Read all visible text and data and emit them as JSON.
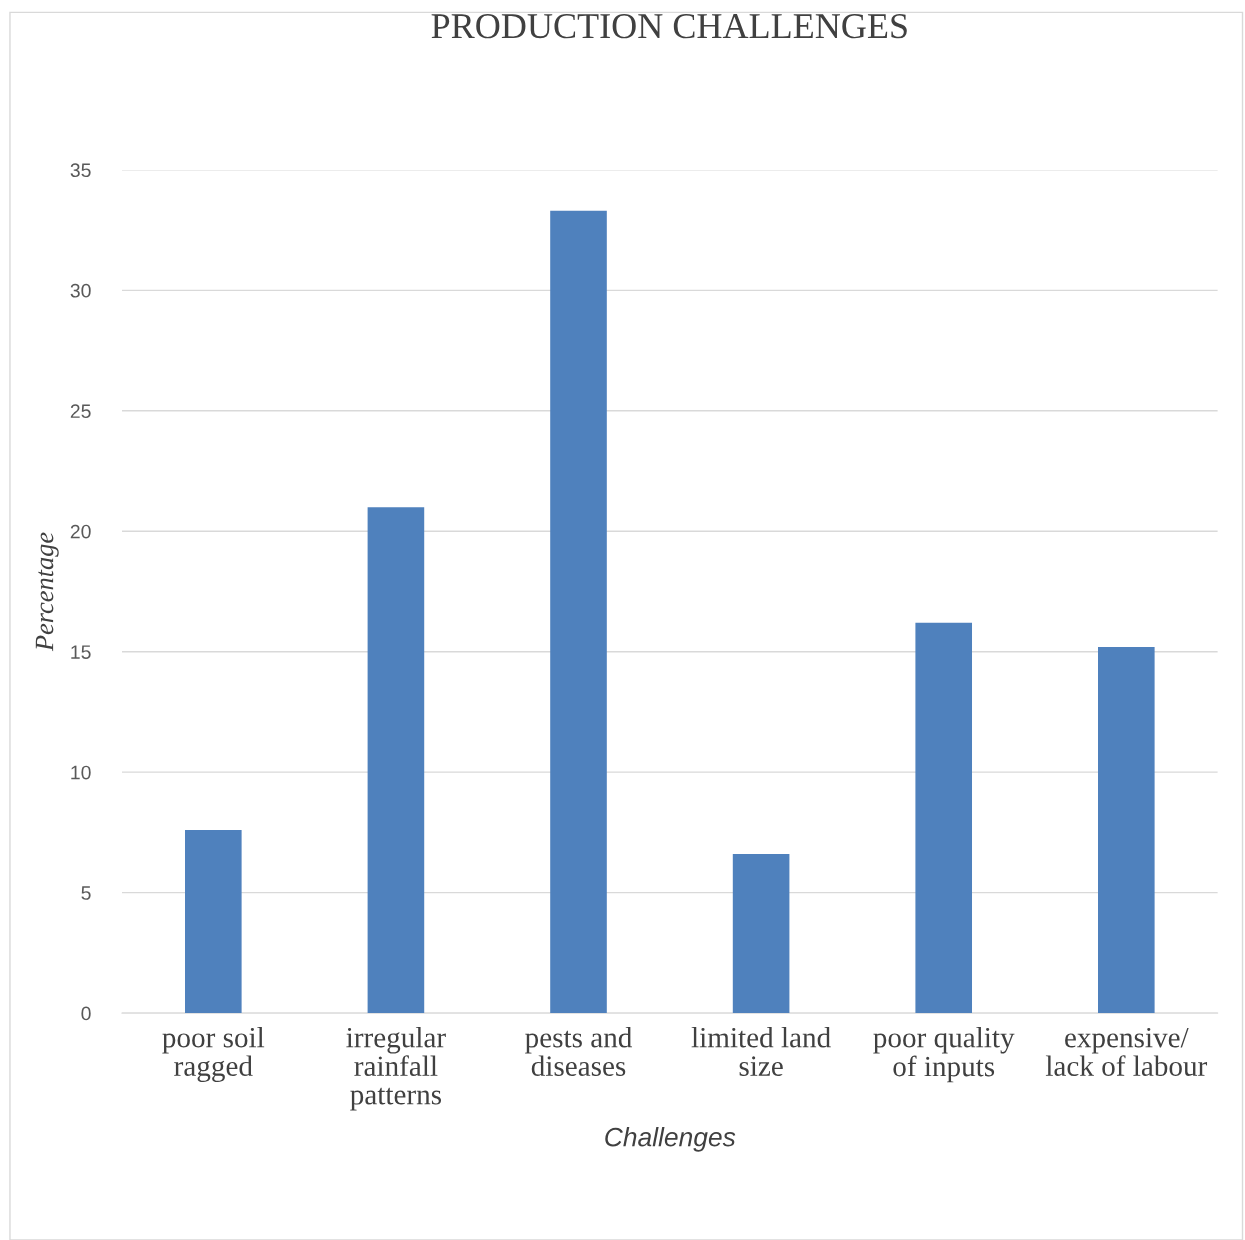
{
  "chart_data": {
    "type": "bar",
    "title": "PRODUCTION CHALLENGES",
    "xlabel": "Challenges",
    "ylabel": "Percentage",
    "categories": [
      "poor soil\nragged",
      "irregular\nrainfall\npatterns",
      "pests and\ndiseases",
      "limited land\nsize",
      "poor quality\nof inputs",
      "expensive/\nlack of labour"
    ],
    "values": [
      7.6,
      21.0,
      33.3,
      6.6,
      16.2,
      15.2
    ],
    "color": "#4f81bd",
    "ylim": [
      0,
      35
    ],
    "yticks": [
      0,
      5,
      10,
      15,
      20,
      25,
      30,
      35
    ],
    "grid": "y",
    "legend": false
  }
}
